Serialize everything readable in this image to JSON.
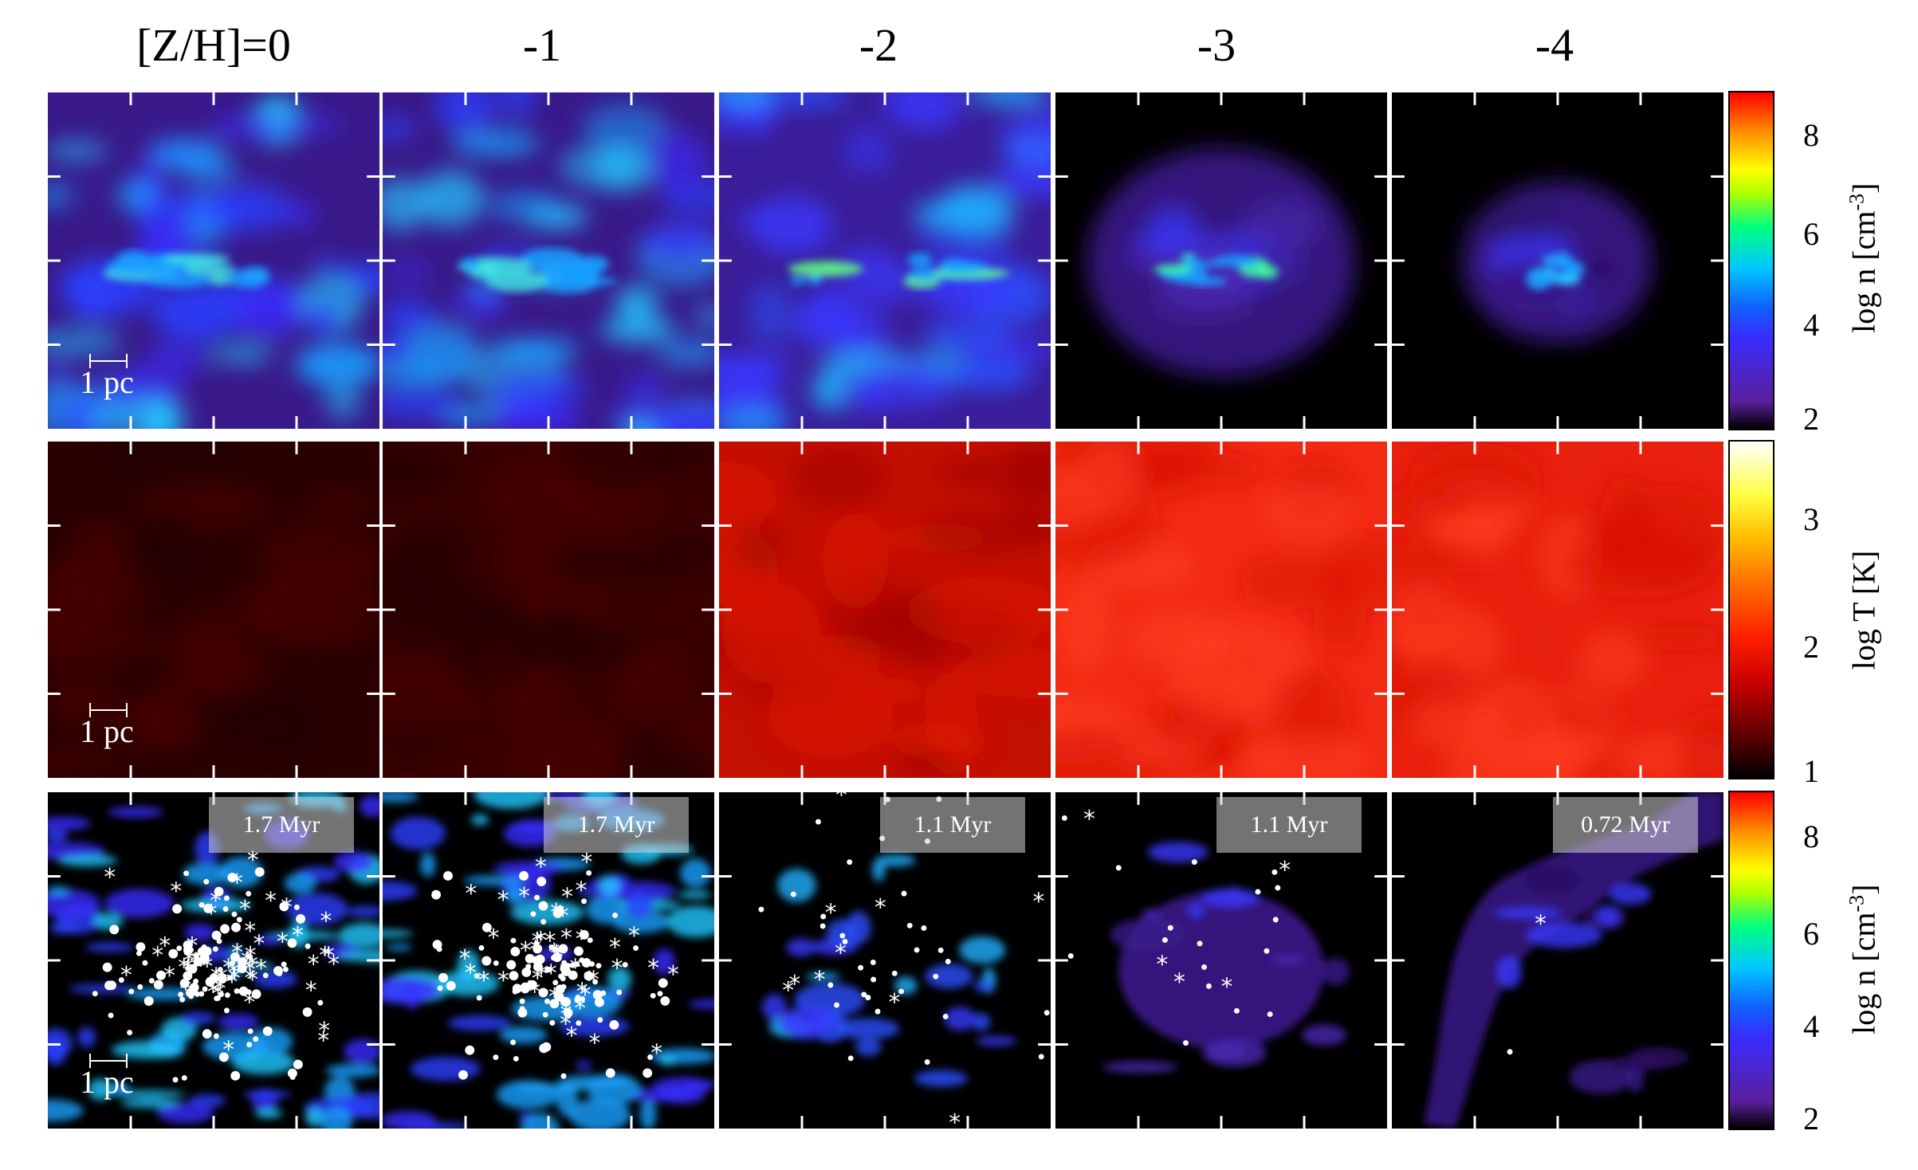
{
  "columns": [
    {
      "title": "[Z/H]=0"
    },
    {
      "title": "-1"
    },
    {
      "title": "-2"
    },
    {
      "title": "-3"
    },
    {
      "title": "-4"
    }
  ],
  "rows": [
    {
      "quantity": "density",
      "colorbar_label": "log n [cm",
      "colorbar_label_sup": "-3",
      "colorbar_label_end": "]",
      "colorbar_ticks": [
        "8",
        "6",
        "4",
        "2"
      ],
      "colormap": "rainbow-purple"
    },
    {
      "quantity": "temperature",
      "colorbar_label": "log T [K]",
      "colorbar_label_sup": "",
      "colorbar_label_end": "",
      "colorbar_ticks": [
        "3",
        "2",
        "1"
      ],
      "colormap": "hot"
    },
    {
      "quantity": "density-sinks",
      "colorbar_label": "log n [cm",
      "colorbar_label_sup": "-3",
      "colorbar_label_end": "]",
      "colorbar_ticks": [
        "8",
        "6",
        "4",
        "2"
      ],
      "colormap": "rainbow-purple"
    }
  ],
  "scale_bar_label": "1 pc",
  "times": [
    "1.7 Myr",
    "1.7 Myr",
    "1.1 Myr",
    "1.1 Myr",
    "0.72 Myr"
  ],
  "colors": {
    "density_low": "#2a0a55",
    "density_mid": "#2b2cff",
    "density_high": "#00e0ff",
    "temp_dark": "#3a0000",
    "temp_bright": "#ff2a10"
  }
}
